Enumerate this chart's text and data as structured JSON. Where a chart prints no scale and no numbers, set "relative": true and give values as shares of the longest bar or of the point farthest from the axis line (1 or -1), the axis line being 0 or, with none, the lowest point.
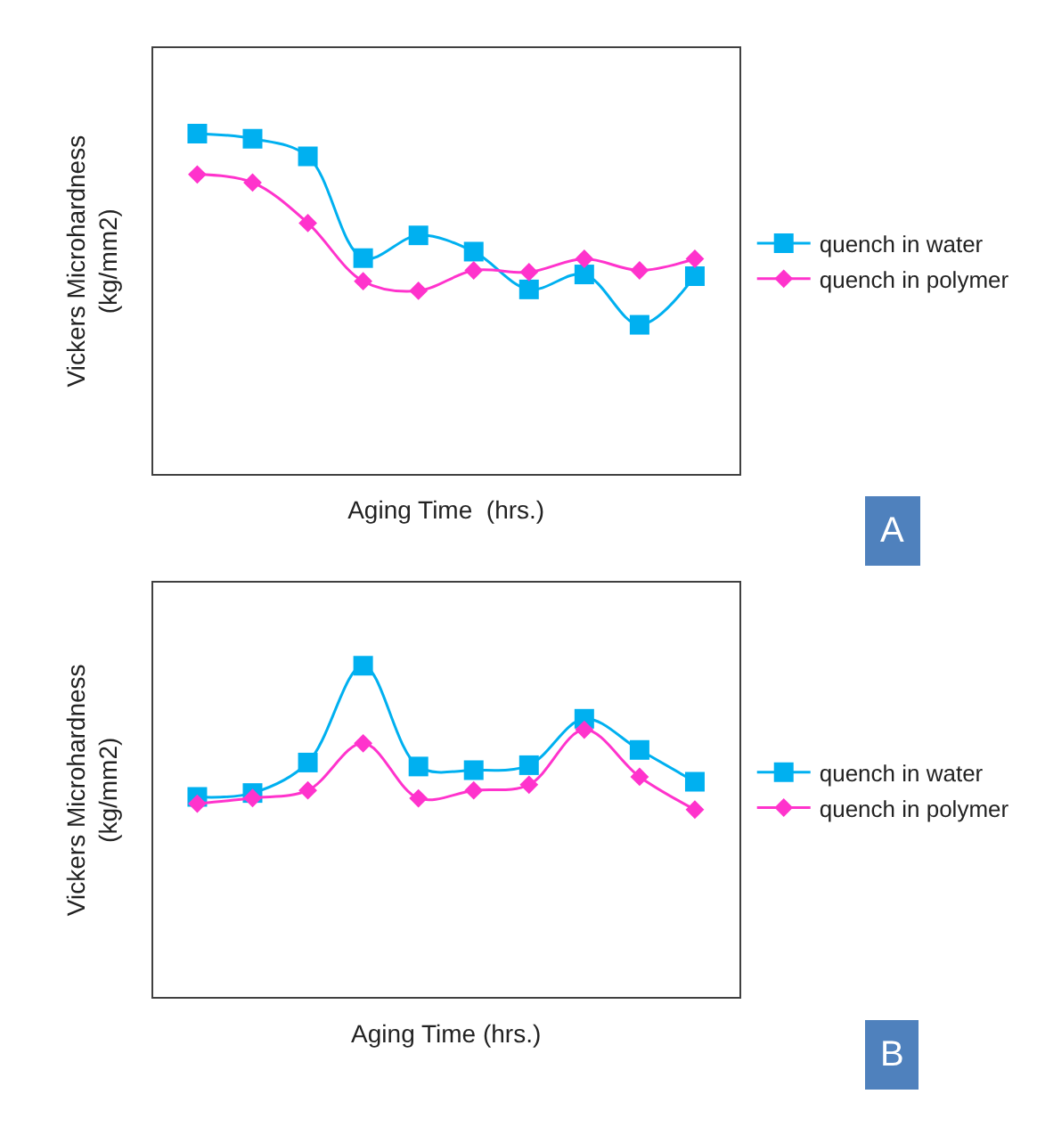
{
  "chart_data": [
    {
      "type": "line",
      "xlabel": "Aging Time  (hrs.)",
      "ylabel": "Vickers Microhardness\n(kg/mm2)",
      "relative": true,
      "categories": [
        null,
        null,
        null,
        null,
        null,
        null,
        null,
        null,
        null,
        null
      ],
      "legend": "right",
      "tick_labels": false,
      "line_style": "solid",
      "annotations": [
        "A"
      ],
      "series": [
        {
          "name": "quench in water",
          "color": "#00b0f0",
          "marker": "square",
          "values": [
            1,
            0.985,
            0.933,
            0.634,
            0.701,
            0.653,
            0.542,
            0.586,
            0.438,
            0.581
          ]
        },
        {
          "name": "quench in polymer",
          "color": "#ff33cc",
          "marker": "diamond",
          "values": [
            0.88,
            0.856,
            0.737,
            0.566,
            0.538,
            0.598,
            0.593,
            0.632,
            0.598,
            0.632
          ]
        }
      ]
    },
    {
      "type": "line",
      "xlabel": "Aging Time (hrs.)",
      "ylabel": "Vickers Microhardness\n(kg/mm2)",
      "relative": true,
      "categories": [
        null,
        null,
        null,
        null,
        null,
        null,
        null,
        null,
        null,
        null
      ],
      "legend": "right",
      "tick_labels": false,
      "line_style": "solid",
      "annotations": [
        "B"
      ],
      "series": [
        {
          "name": "quench in water",
          "color": "#00b0f0",
          "marker": "square",
          "values": [
            0.604,
            0.616,
            0.708,
            1,
            0.696,
            0.685,
            0.7,
            0.84,
            0.746,
            0.65
          ]
        },
        {
          "name": "quench in polymer",
          "color": "#ff33cc",
          "marker": "diamond",
          "values": [
            0.584,
            0.601,
            0.624,
            0.766,
            0.6,
            0.624,
            0.641,
            0.807,
            0.665,
            0.566
          ]
        }
      ]
    }
  ]
}
